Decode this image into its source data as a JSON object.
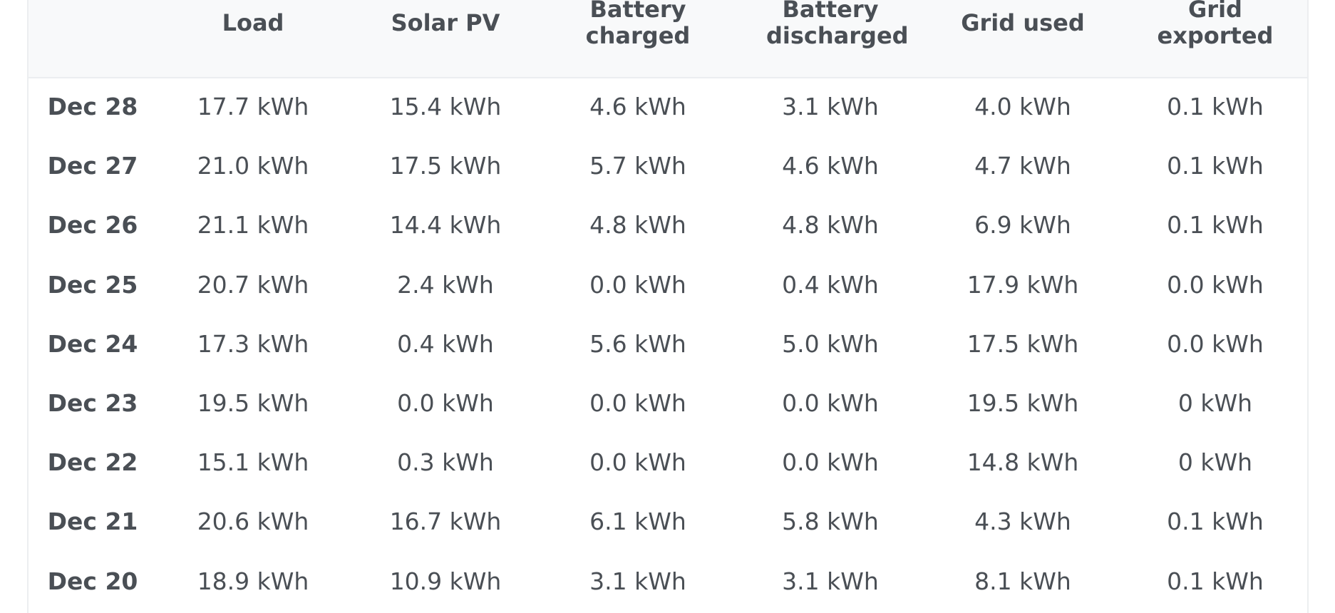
{
  "table": {
    "header": [
      "Load",
      "Solar PV",
      "Battery charged",
      "Battery discharged",
      "Grid used",
      "Grid exported"
    ],
    "rows": [
      [
        "Dec 28",
        "17.7 kWh",
        "15.4 kWh",
        "4.6 kWh",
        "3.1 kWh",
        "4.0 kWh",
        "0.1 kWh"
      ],
      [
        "Dec 27",
        "21.0 kWh",
        "17.5 kWh",
        "5.7 kWh",
        "4.6 kWh",
        "4.7 kWh",
        "0.1 kWh"
      ],
      [
        "Dec 26",
        "21.1 kWh",
        "14.4 kWh",
        "4.8 kWh",
        "4.8 kWh",
        "6.9 kWh",
        "0.1 kWh"
      ],
      [
        "Dec 25",
        "20.7 kWh",
        "2.4 kWh",
        "0.0 kWh",
        "0.4 kWh",
        "17.9 kWh",
        "0.0 kWh"
      ],
      [
        "Dec 24",
        "17.3 kWh",
        "0.4 kWh",
        "5.6 kWh",
        "5.0 kWh",
        "17.5 kWh",
        "0.0 kWh"
      ],
      [
        "Dec 23",
        "19.5 kWh",
        "0.0 kWh",
        "0.0 kWh",
        "0.0 kWh",
        "19.5 kWh",
        "0 kWh"
      ],
      [
        "Dec 22",
        "15.1 kWh",
        "0.3 kWh",
        "0.0 kWh",
        "0.0 kWh",
        "14.8 kWh",
        "0 kWh"
      ],
      [
        "Dec 21",
        "20.6 kWh",
        "16.7 kWh",
        "6.1 kWh",
        "5.8 kWh",
        "4.3 kWh",
        "0.1 kWh"
      ],
      [
        "Dec 20",
        "18.9 kWh",
        "10.9 kWh",
        "3.1 kWh",
        "3.1 kWh",
        "8.1 kWh",
        "0.1 kWh"
      ]
    ]
  }
}
